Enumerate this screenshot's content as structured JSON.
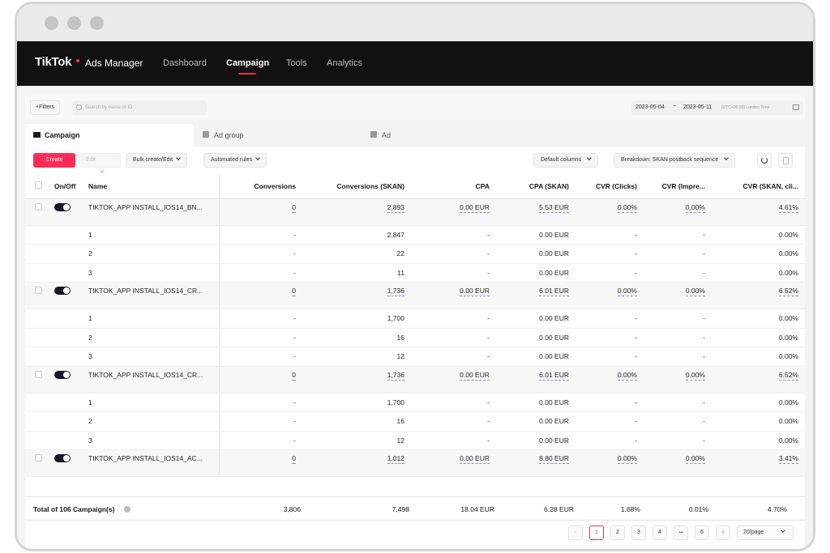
{
  "nav": {
    "logo": "TikTok",
    "logo_sub": "Ads Manager",
    "items": [
      "Dashboard",
      "Campaign",
      "Tools",
      "Analytics"
    ]
  },
  "filters": {
    "filters_label": "+Filters",
    "search_placeholder": "Search by name or ID",
    "date_start": "2023-05-04",
    "date_sep": "~",
    "date_end": "2023-05-11",
    "timezone": "(UTC+00:00) London Time"
  },
  "tabs": [
    "Campaign",
    "Ad group",
    "Ad"
  ],
  "toolbar": {
    "create": "Create",
    "edit": "Edit",
    "bulk": "Bulk create/Edit",
    "rules": "Automated rules",
    "columns": "Default columns",
    "breakdown": "Breakdown: SKAN postback sequence"
  },
  "columns": [
    "On/Off",
    "Name",
    "Conversions",
    "Conversions (SKAN)",
    "CPA",
    "CPA (SKAN)",
    "CVR (Clicks)",
    "CVR (Impre...",
    "CVR (SKAN, cli..."
  ],
  "rows": [
    {
      "type": "parent",
      "name": "TIKTOK_APP INSTALL_IOS14_BN...",
      "conv": "0",
      "skan": "2,893",
      "cpa": "0.00 EUR",
      "cpa_skan": "5.53 EUR",
      "cvr_clicks": "0.00%",
      "cvr_impr": "0.00%",
      "cvr_skan": "4.61%"
    },
    {
      "type": "child",
      "name": "1",
      "conv": "-",
      "skan": "2,847",
      "cpa": "-",
      "cpa_skan": "0.00 EUR",
      "cvr_clicks": "-",
      "cvr_impr": "-",
      "cvr_skan": "0.00%"
    },
    {
      "type": "child",
      "name": "2",
      "conv": "-",
      "skan": "22",
      "cpa": "-",
      "cpa_skan": "0.00 EUR",
      "cvr_clicks": "-",
      "cvr_impr": "-",
      "cvr_skan": "0.00%"
    },
    {
      "type": "child",
      "name": "3",
      "conv": "-",
      "skan": "11",
      "cpa": "-",
      "cpa_skan": "0.00 EUR",
      "cvr_clicks": "-",
      "cvr_impr": "-",
      "cvr_skan": "0.00%"
    },
    {
      "type": "parent",
      "name": "TIKTOK_APP INSTALL_IOS14_CR...",
      "conv": "0",
      "skan": "1,736",
      "cpa": "0.00 EUR",
      "cpa_skan": "6.01 EUR",
      "cvr_clicks": "0.00%",
      "cvr_impr": "0.00%",
      "cvr_skan": "6.52%"
    },
    {
      "type": "child",
      "name": "1",
      "conv": "-",
      "skan": "1,700",
      "cpa": "-",
      "cpa_skan": "0.00 EUR",
      "cvr_clicks": "-",
      "cvr_impr": "-",
      "cvr_skan": "0.00%"
    },
    {
      "type": "child",
      "name": "2",
      "conv": "-",
      "skan": "16",
      "cpa": "-",
      "cpa_skan": "0.00 EUR",
      "cvr_clicks": "-",
      "cvr_impr": "-",
      "cvr_skan": "0.00%"
    },
    {
      "type": "child",
      "name": "3",
      "conv": "-",
      "skan": "12",
      "cpa": "-",
      "cpa_skan": "0.00 EUR",
      "cvr_clicks": "-",
      "cvr_impr": "-",
      "cvr_skan": "0.00%"
    },
    {
      "type": "parent",
      "name": "TIKTOK_APP INSTALL_IOS14_CR...",
      "conv": "0",
      "skan": "1,736",
      "cpa": "0.00 EUR",
      "cpa_skan": "6.01 EUR",
      "cvr_clicks": "0.00%",
      "cvr_impr": "0.00%",
      "cvr_skan": "6.52%"
    },
    {
      "type": "child",
      "name": "1",
      "conv": "-",
      "skan": "1,700",
      "cpa": "-",
      "cpa_skan": "0.00 EUR",
      "cvr_clicks": "-",
      "cvr_impr": "-",
      "cvr_skan": "0.00%"
    },
    {
      "type": "child",
      "name": "2",
      "conv": "-",
      "skan": "16",
      "cpa": "-",
      "cpa_skan": "0.00 EUR",
      "cvr_clicks": "-",
      "cvr_impr": "-",
      "cvr_skan": "0.00%"
    },
    {
      "type": "child",
      "name": "3",
      "conv": "-",
      "skan": "12",
      "cpa": "-",
      "cpa_skan": "0.00 EUR",
      "cvr_clicks": "-",
      "cvr_impr": "-",
      "cvr_skan": "0.00%"
    },
    {
      "type": "parent",
      "name": "TIKTOK_APP INSTALL_IOS14_AC...",
      "conv": "0",
      "skan": "1,012",
      "cpa": "0.00 EUR",
      "cpa_skan": "8.80 EUR",
      "cvr_clicks": "0.00%",
      "cvr_impr": "0.00%",
      "cvr_skan": "3.41%"
    }
  ],
  "totals": {
    "label": "Total of 106 Campaign(s)",
    "conv": "3,806",
    "skan": "7,498",
    "cpa": "18.04 EUR",
    "cpa_skan": "6.28 EUR",
    "cvr_clicks": "1.68%",
    "cvr_impr": "0.01%",
    "cvr_skan": "4.70%"
  },
  "pagination": {
    "pages": [
      "1",
      "2",
      "3",
      "4",
      "•••",
      "6"
    ],
    "page_size": "20/page"
  },
  "colors": {
    "accent": "#fe2c55",
    "navbar": "#111111",
    "link_underline": "#7a8ed6"
  }
}
